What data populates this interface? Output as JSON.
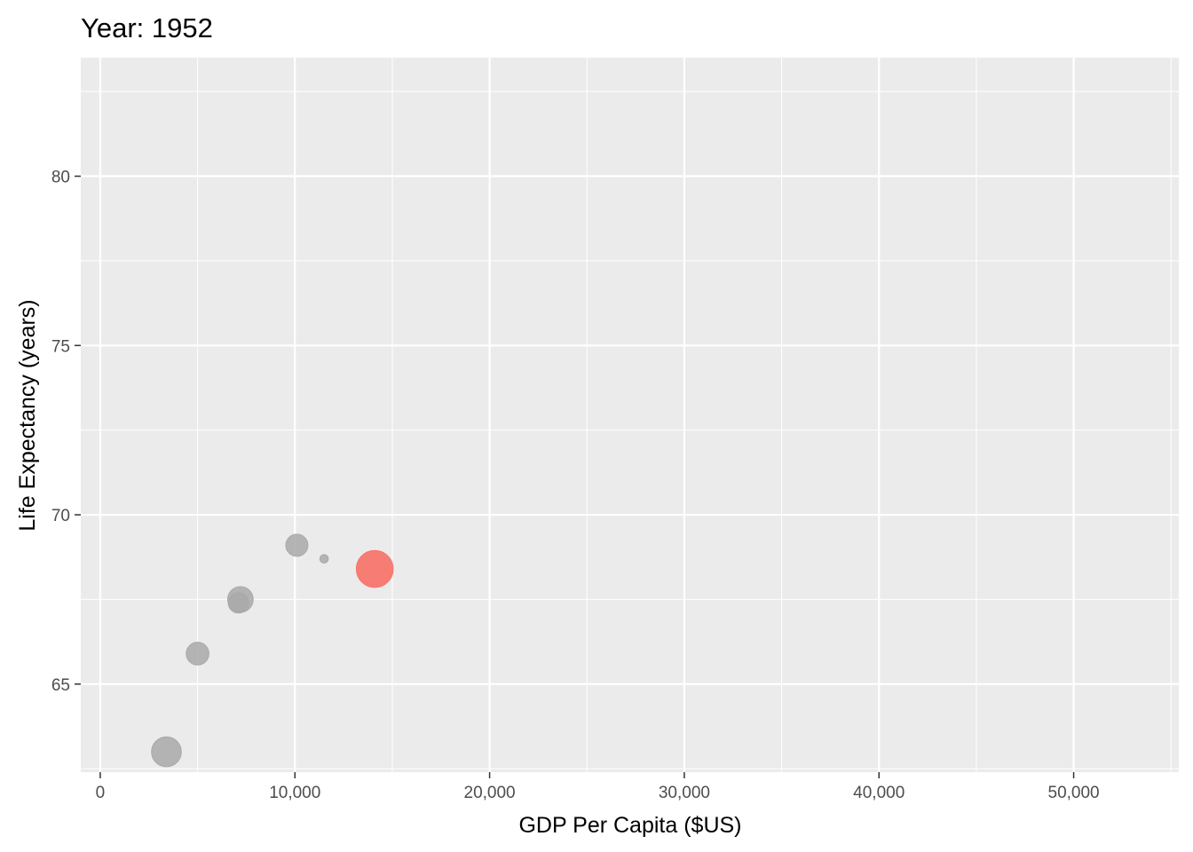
{
  "chart_data": {
    "type": "scatter",
    "title": "Year: 1952",
    "xlabel": "GDP Per Capita ($US)",
    "ylabel": "Life Expectancy (years)",
    "xlim": [
      -1000,
      55400
    ],
    "ylim": [
      62.4,
      83.5
    ],
    "x_ticks": [
      0,
      10000,
      20000,
      30000,
      40000,
      50000
    ],
    "x_tick_labels": [
      "0",
      "10,000",
      "20,000",
      "30,000",
      "40,000",
      "50,000"
    ],
    "y_ticks": [
      65,
      70,
      75,
      80
    ],
    "y_tick_labels": [
      "65",
      "70",
      "75",
      "80"
    ],
    "grid": true,
    "background": "#ebebeb",
    "colors": {
      "highlight": "#f8766d",
      "other": "#a9a9a9"
    },
    "points": [
      {
        "x": 3400,
        "y": 63.0,
        "size": 1.05,
        "highlight": false
      },
      {
        "x": 5000,
        "y": 65.9,
        "size": 0.8,
        "highlight": false
      },
      {
        "x": 7200,
        "y": 67.5,
        "size": 0.9,
        "highlight": false
      },
      {
        "x": 7100,
        "y": 67.4,
        "size": 0.72,
        "highlight": false
      },
      {
        "x": 10100,
        "y": 69.1,
        "size": 0.78,
        "highlight": false
      },
      {
        "x": 11500,
        "y": 68.7,
        "size": 0.3,
        "highlight": false
      },
      {
        "x": 14100,
        "y": 68.4,
        "size": 1.3,
        "highlight": true
      }
    ]
  }
}
